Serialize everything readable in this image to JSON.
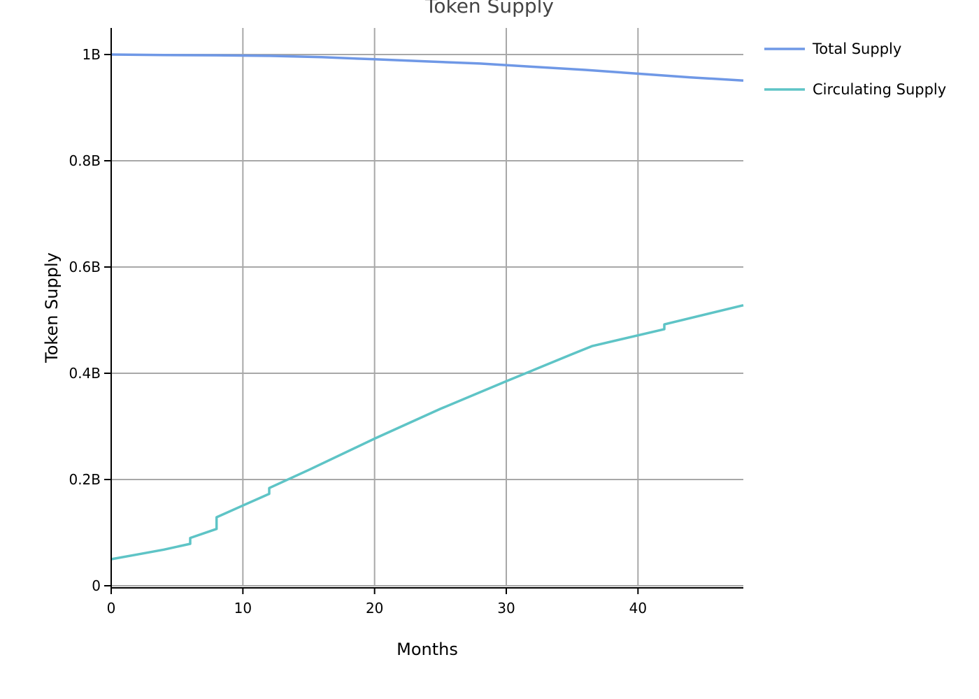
{
  "chart_data": {
    "type": "line",
    "title": "Token Supply",
    "xlabel": "Months",
    "ylabel": "Token Supply",
    "xlim": [
      0,
      48
    ],
    "ylim": [
      0,
      1050000000
    ],
    "x_ticks": [
      0,
      10,
      20,
      30,
      40
    ],
    "x_tick_labels": [
      "0",
      "10",
      "20",
      "30",
      "40"
    ],
    "y_ticks": [
      0,
      200000000,
      400000000,
      600000000,
      800000000,
      1000000000
    ],
    "y_tick_labels": [
      "0",
      "0.2B",
      "0.4B",
      "0.6B",
      "0.8B",
      "1B"
    ],
    "grid": true,
    "legend_position": "outside-top-right",
    "series": [
      {
        "name": "Total Supply",
        "color": "#6f98e6",
        "x": [
          0,
          4,
          8,
          12,
          16,
          20,
          24,
          28,
          32,
          36,
          40,
          44,
          48
        ],
        "y": [
          1000000000,
          999000000,
          998500000,
          997500000,
          995000000,
          991000000,
          987000000,
          983000000,
          977000000,
          971000000,
          964000000,
          957000000,
          951000000
        ]
      },
      {
        "name": "Circulating Supply",
        "color": "#5ec4c6",
        "x": [
          0,
          2,
          4,
          6,
          6,
          8,
          8,
          10,
          12,
          12,
          15,
          20,
          25,
          30,
          35,
          36.5,
          42,
          42,
          48
        ],
        "y": [
          50000000,
          59000000,
          68000000,
          79000000,
          90000000,
          107000000,
          129000000,
          151000000,
          173000000,
          184000000,
          218000000,
          277000000,
          333000000,
          385000000,
          436000000,
          451000000,
          483000000,
          492000000,
          528000000
        ]
      }
    ]
  }
}
